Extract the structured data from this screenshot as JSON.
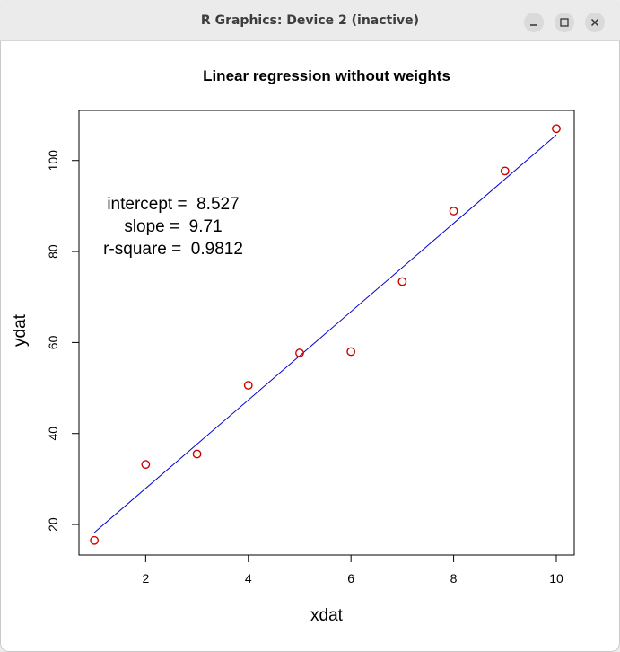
{
  "window": {
    "title": "R Graphics: Device 2 (inactive)",
    "minimize_icon": "minimize-icon",
    "maximize_icon": "maximize-icon",
    "close_icon": "close-icon"
  },
  "chart_data": {
    "type": "scatter",
    "title": "Linear regression without weights",
    "xlabel": "xdat",
    "ylabel": "ydat",
    "xlim": [
      0.7,
      10.35
    ],
    "ylim": [
      13.3,
      111
    ],
    "x_ticks": [
      2,
      4,
      6,
      8,
      10
    ],
    "y_ticks": [
      20,
      40,
      60,
      80,
      100
    ],
    "points": [
      {
        "x": 1,
        "y": 16.5
      },
      {
        "x": 2,
        "y": 33.2
      },
      {
        "x": 3,
        "y": 35.5
      },
      {
        "x": 4,
        "y": 50.6
      },
      {
        "x": 5,
        "y": 57.7
      },
      {
        "x": 6,
        "y": 58
      },
      {
        "x": 7,
        "y": 73.4
      },
      {
        "x": 8,
        "y": 88.9
      },
      {
        "x": 9,
        "y": 97.7
      },
      {
        "x": 10,
        "y": 107
      }
    ],
    "fit_line": {
      "intercept": 8.527,
      "slope": 9.71,
      "x_from": 1,
      "x_to": 10,
      "color": "#0000cd"
    },
    "point_color": "#cc0000",
    "annotations": [
      "intercept =  8.527",
      "slope =  9.71",
      "r-square =  0.9812"
    ],
    "grid": false
  }
}
